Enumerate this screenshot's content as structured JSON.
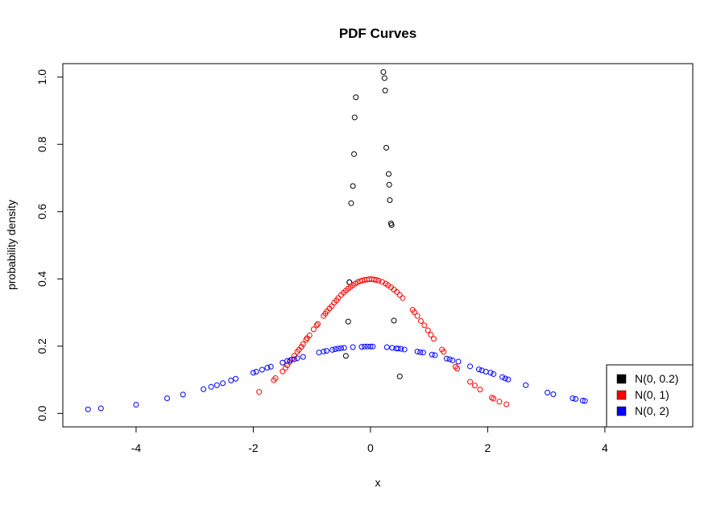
{
  "chart_data": {
    "type": "scatter",
    "title": "PDF Curves",
    "xlabel": "x",
    "ylabel": "probability density",
    "xlim": [
      -5.25,
      5.5
    ],
    "ylim": [
      -0.04,
      1.04
    ],
    "xticks": [
      -4,
      -2,
      0,
      2,
      4
    ],
    "yticks": [
      0.0,
      0.2,
      0.4,
      0.6,
      0.8,
      1.0
    ],
    "xtick_labels": [
      "-4",
      "-2",
      "0",
      "2",
      "4"
    ],
    "ytick_labels": [
      "0.0",
      "0.2",
      "0.4",
      "0.6",
      "0.8",
      "1.0"
    ],
    "grid": false,
    "legend_position": "bottom-right",
    "series": [
      {
        "name": "N(0, 0.2)",
        "color": "#000000",
        "x": [
          -0.36,
          -0.36,
          -0.3,
          -0.28,
          -0.27,
          -0.25,
          0.22,
          0.24,
          0.25,
          0.27,
          0.31,
          0.32,
          0.33,
          0.35,
          0.36,
          -0.33,
          -0.38,
          -0.42,
          0.4,
          0.5
        ],
        "y": [
          0.39,
          0.39,
          0.676,
          0.771,
          0.88,
          0.94,
          1.015,
          0.997,
          0.96,
          0.79,
          0.712,
          0.68,
          0.634,
          0.565,
          0.56,
          0.625,
          0.273,
          0.171,
          0.276,
          0.11
        ]
      },
      {
        "name": "N(0, 1)",
        "color": "#ff0000",
        "x": [
          -1.9,
          -1.65,
          -1.62,
          -1.5,
          -1.45,
          -1.42,
          -1.38,
          -1.34,
          -1.3,
          -1.25,
          -1.22,
          -1.18,
          -1.15,
          -1.1,
          -1.08,
          -1.04,
          -0.97,
          -0.92,
          -0.9,
          -0.8,
          -0.77,
          -0.74,
          -0.7,
          -0.66,
          -0.62,
          -0.58,
          -0.55,
          -0.5,
          -0.46,
          -0.42,
          -0.38,
          -0.34,
          -0.3,
          -0.26,
          -0.22,
          -0.18,
          -0.14,
          -0.1,
          -0.06,
          -0.02,
          0.02,
          0.06,
          0.1,
          0.14,
          0.2,
          0.26,
          0.3,
          0.35,
          0.4,
          0.45,
          0.5,
          0.55,
          0.72,
          0.75,
          0.8,
          0.86,
          0.92,
          0.98,
          1.03,
          1.08,
          1.22,
          1.25,
          1.45,
          1.48,
          1.7,
          1.78,
          1.87,
          2.07,
          2.1,
          2.2,
          2.32
        ],
        "y": [
          0.064,
          0.099,
          0.105,
          0.125,
          0.135,
          0.143,
          0.153,
          0.161,
          0.171,
          0.183,
          0.189,
          0.198,
          0.206,
          0.219,
          0.224,
          0.232,
          0.25,
          0.262,
          0.266,
          0.29,
          0.297,
          0.304,
          0.312,
          0.319,
          0.329,
          0.336,
          0.343,
          0.352,
          0.359,
          0.365,
          0.371,
          0.376,
          0.381,
          0.386,
          0.39,
          0.393,
          0.395,
          0.397,
          0.398,
          0.399,
          0.399,
          0.398,
          0.397,
          0.395,
          0.391,
          0.386,
          0.381,
          0.375,
          0.368,
          0.361,
          0.352,
          0.343,
          0.308,
          0.301,
          0.29,
          0.275,
          0.262,
          0.247,
          0.234,
          0.222,
          0.19,
          0.183,
          0.139,
          0.133,
          0.094,
          0.083,
          0.071,
          0.047,
          0.044,
          0.035,
          0.027
        ]
      },
      {
        "name": "N(0, 2)",
        "color": "#0000ff",
        "x": [
          -4.82,
          -4.6,
          -4.0,
          -3.47,
          -3.2,
          -2.85,
          -2.72,
          -2.62,
          -2.52,
          -2.38,
          -2.3,
          -2.0,
          -1.95,
          -1.85,
          -1.76,
          -1.7,
          -1.5,
          -1.42,
          -1.37,
          -1.3,
          -1.25,
          -1.15,
          -0.88,
          -0.8,
          -0.75,
          -0.65,
          -0.6,
          -0.55,
          -0.5,
          -0.45,
          -0.3,
          -0.15,
          -0.1,
          -0.05,
          0.0,
          0.04,
          0.28,
          0.37,
          0.44,
          0.47,
          0.52,
          0.58,
          0.8,
          0.85,
          0.9,
          1.05,
          1.1,
          1.3,
          1.35,
          1.4,
          1.5,
          1.7,
          1.85,
          1.9,
          1.97,
          2.05,
          2.1,
          2.25,
          2.3,
          2.35,
          2.65,
          3.02,
          3.12,
          3.45,
          3.5,
          3.62,
          3.66
        ],
        "y": [
          0.012,
          0.015,
          0.026,
          0.045,
          0.056,
          0.072,
          0.079,
          0.084,
          0.09,
          0.098,
          0.103,
          0.121,
          0.124,
          0.13,
          0.136,
          0.139,
          0.151,
          0.156,
          0.158,
          0.161,
          0.164,
          0.168,
          0.181,
          0.184,
          0.186,
          0.189,
          0.191,
          0.193,
          0.194,
          0.195,
          0.197,
          0.198,
          0.199,
          0.199,
          0.199,
          0.199,
          0.197,
          0.195,
          0.193,
          0.193,
          0.192,
          0.19,
          0.184,
          0.182,
          0.181,
          0.175,
          0.173,
          0.163,
          0.161,
          0.158,
          0.154,
          0.14,
          0.131,
          0.128,
          0.124,
          0.121,
          0.117,
          0.108,
          0.104,
          0.101,
          0.084,
          0.062,
          0.057,
          0.045,
          0.043,
          0.038,
          0.037
        ]
      }
    ]
  }
}
